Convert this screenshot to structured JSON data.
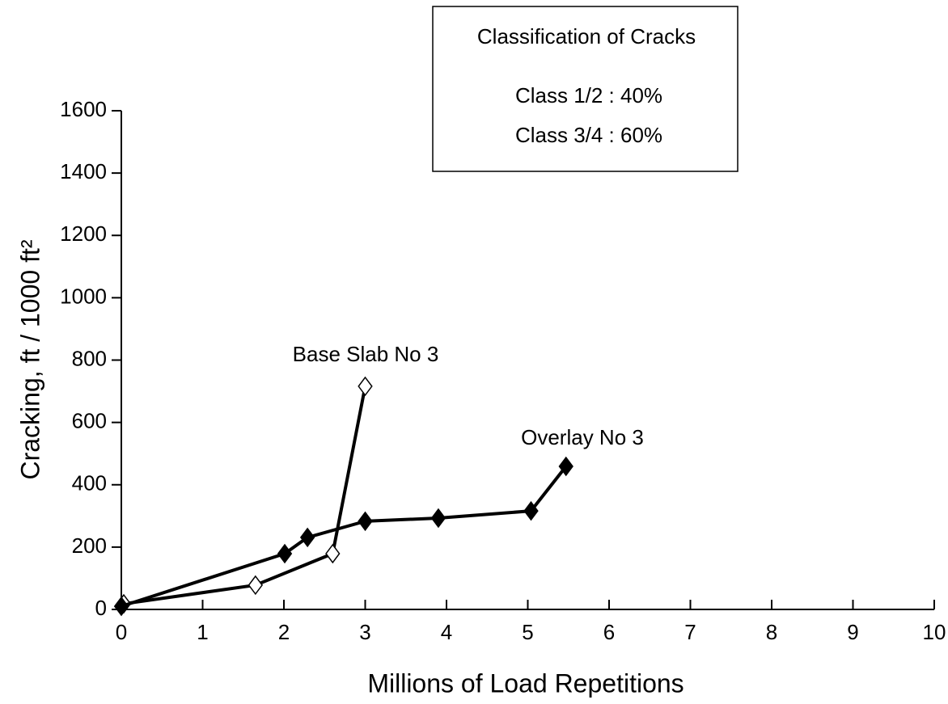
{
  "chart_data": {
    "type": "line",
    "xlabel": "Millions of Load Repetitions",
    "ylabel": "Cracking, ft / 1000 ft²",
    "annotations": [
      "Classification of Cracks",
      "Class 1/2 :  40%",
      "Class 3/4 :  60%"
    ],
    "xlim": [
      0,
      10
    ],
    "xticks": [
      0,
      1,
      2,
      3,
      4,
      5,
      6,
      7,
      8,
      9,
      10
    ],
    "ylim": [
      0,
      1600
    ],
    "yticks": [
      0,
      200,
      400,
      600,
      800,
      1000,
      1200,
      1400,
      1600
    ],
    "series": [
      {
        "name": "Base Slab No 3",
        "color": "#000000",
        "marker": "open",
        "x": [
          0.03,
          1.65,
          2.6,
          3.0
        ],
        "values": [
          18,
          78,
          179,
          716
        ]
      },
      {
        "name": "Overlay No 3",
        "color": "#000000",
        "marker": "filled",
        "x": [
          0,
          2.01,
          2.29,
          3.0,
          3.9,
          5.04,
          5.47
        ],
        "values": [
          10,
          179,
          231,
          283,
          293,
          316,
          459
        ]
      }
    ]
  }
}
